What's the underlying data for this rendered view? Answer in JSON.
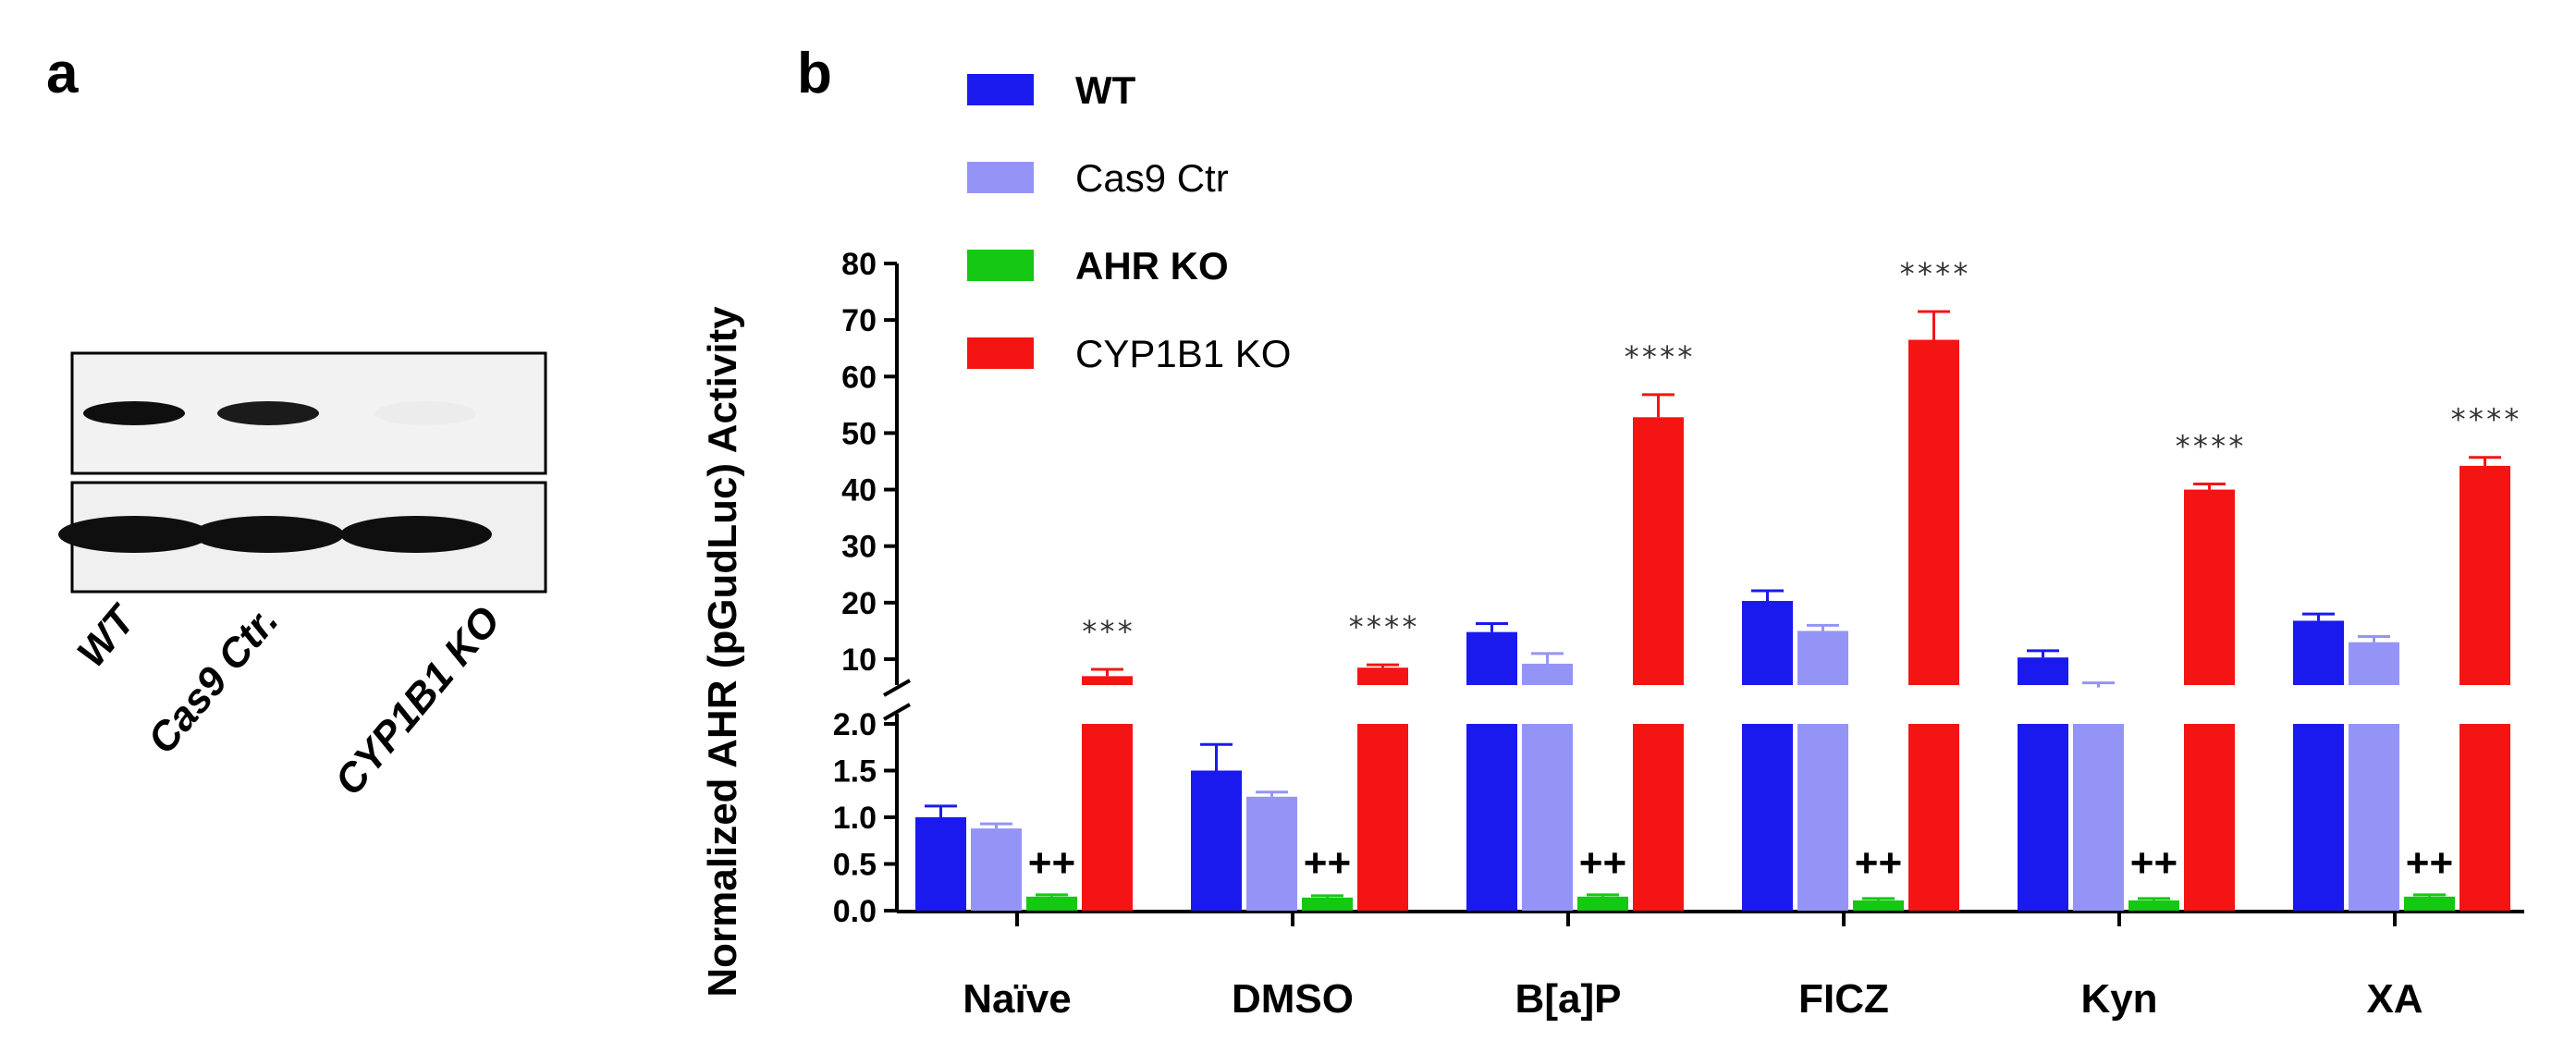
{
  "panels": {
    "a": "a",
    "b": "b"
  },
  "blot": {
    "lanes": [
      "WT",
      "Cas9 Ctr.",
      "CYP1B1 KO"
    ],
    "top_band_intensity": [
      1.0,
      0.95,
      0.08
    ],
    "bottom_band_intensity": [
      1.0,
      1.0,
      1.0
    ]
  },
  "colors": {
    "WT": "#1a1aee",
    "Cas9 Ctr": "#9494f7",
    "AHR KO": "#14c814",
    "CYP1B1 KO": "#f41414"
  },
  "chart_data": {
    "type": "bar",
    "ylabel": "Normalized AHR (pGudLuc) Activity",
    "y_axis_break": true,
    "ylim_lower": [
      0,
      2.0
    ],
    "ylim_upper": [
      5,
      80
    ],
    "yticks_lower": [
      "0.0",
      "0.5",
      "1.0",
      "1.5",
      "2.0"
    ],
    "yticks_upper": [
      "10",
      "20",
      "30",
      "40",
      "50",
      "60",
      "70",
      "80"
    ],
    "categories": [
      "Naïve",
      "DMSO",
      "B[a]P",
      "FICZ",
      "Kyn",
      "XA"
    ],
    "series": [
      {
        "name": "WT",
        "values": [
          1.0,
          1.5,
          14.8,
          20.3,
          10.3,
          16.8
        ],
        "errors": [
          0.12,
          0.28,
          1.5,
          1.8,
          1.2,
          1.2
        ]
      },
      {
        "name": "Cas9 Ctr",
        "values": [
          0.88,
          1.22,
          9.2,
          15.0,
          5.0,
          13.0
        ],
        "errors": [
          0.05,
          0.05,
          1.8,
          1.0,
          0.8,
          1.0
        ]
      },
      {
        "name": "AHR KO",
        "values": [
          0.15,
          0.14,
          0.15,
          0.11,
          0.11,
          0.15
        ],
        "errors": [
          0.02,
          0.02,
          0.02,
          0.02,
          0.02,
          0.02
        ]
      },
      {
        "name": "CYP1B1 KO",
        "values": [
          7.0,
          8.5,
          52.8,
          66.5,
          40.0,
          44.2
        ],
        "errors": [
          1.2,
          0.5,
          4.0,
          5.0,
          1.0,
          1.5
        ]
      }
    ],
    "significance": [
      "***",
      "****",
      "****",
      "****",
      "****",
      "****"
    ],
    "ahr_ko_marks": [
      "++",
      "++",
      "++",
      "++",
      "++",
      "++"
    ],
    "legend": [
      "WT",
      "Cas9 Ctr",
      "AHR KO",
      "CYP1B1 KO"
    ],
    "legend_bold": [
      true,
      false,
      true,
      false
    ]
  }
}
